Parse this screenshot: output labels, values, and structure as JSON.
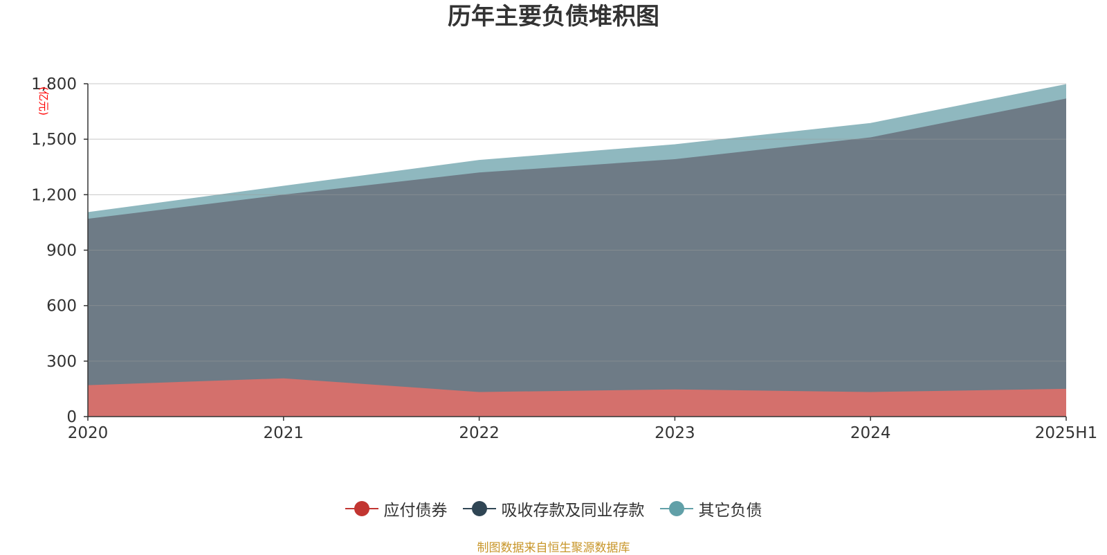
{
  "title": "历年主要负债堆积图",
  "source": "制图数据来自恒生聚源数据库",
  "colors": {
    "axis": "#333333",
    "grid": "#cccccc",
    "unit": "#ff0000"
  },
  "chart_data": {
    "type": "area",
    "stacked": true,
    "title": "历年主要负债堆积图",
    "y_unit": "(亿元)",
    "x": [
      "2020",
      "2021",
      "2022",
      "2023",
      "2024",
      "2025H1"
    ],
    "ylim": [
      0,
      1800
    ],
    "yticks": [
      0,
      300,
      600,
      900,
      1200,
      1500,
      1800
    ],
    "ytick_labels": [
      "0",
      "300",
      "600",
      "900",
      "1,200",
      "1,500",
      "1,800"
    ],
    "grid": true,
    "legend_position": "bottom-center",
    "series": [
      {
        "name": "应付债券",
        "color": "#c23531",
        "fill": "#d4706c",
        "values": [
          170,
          207,
          133,
          147,
          133,
          150
        ]
      },
      {
        "name": "吸收存款及同业存款",
        "color": "#2f4554",
        "fill": "#6e7b86",
        "values": [
          900,
          993,
          1187,
          1245,
          1377,
          1570
        ]
      },
      {
        "name": "其它负债",
        "color": "#61a0a8",
        "fill": "#8fb8bf",
        "values": [
          33,
          45,
          65,
          78,
          75,
          75
        ]
      }
    ]
  }
}
